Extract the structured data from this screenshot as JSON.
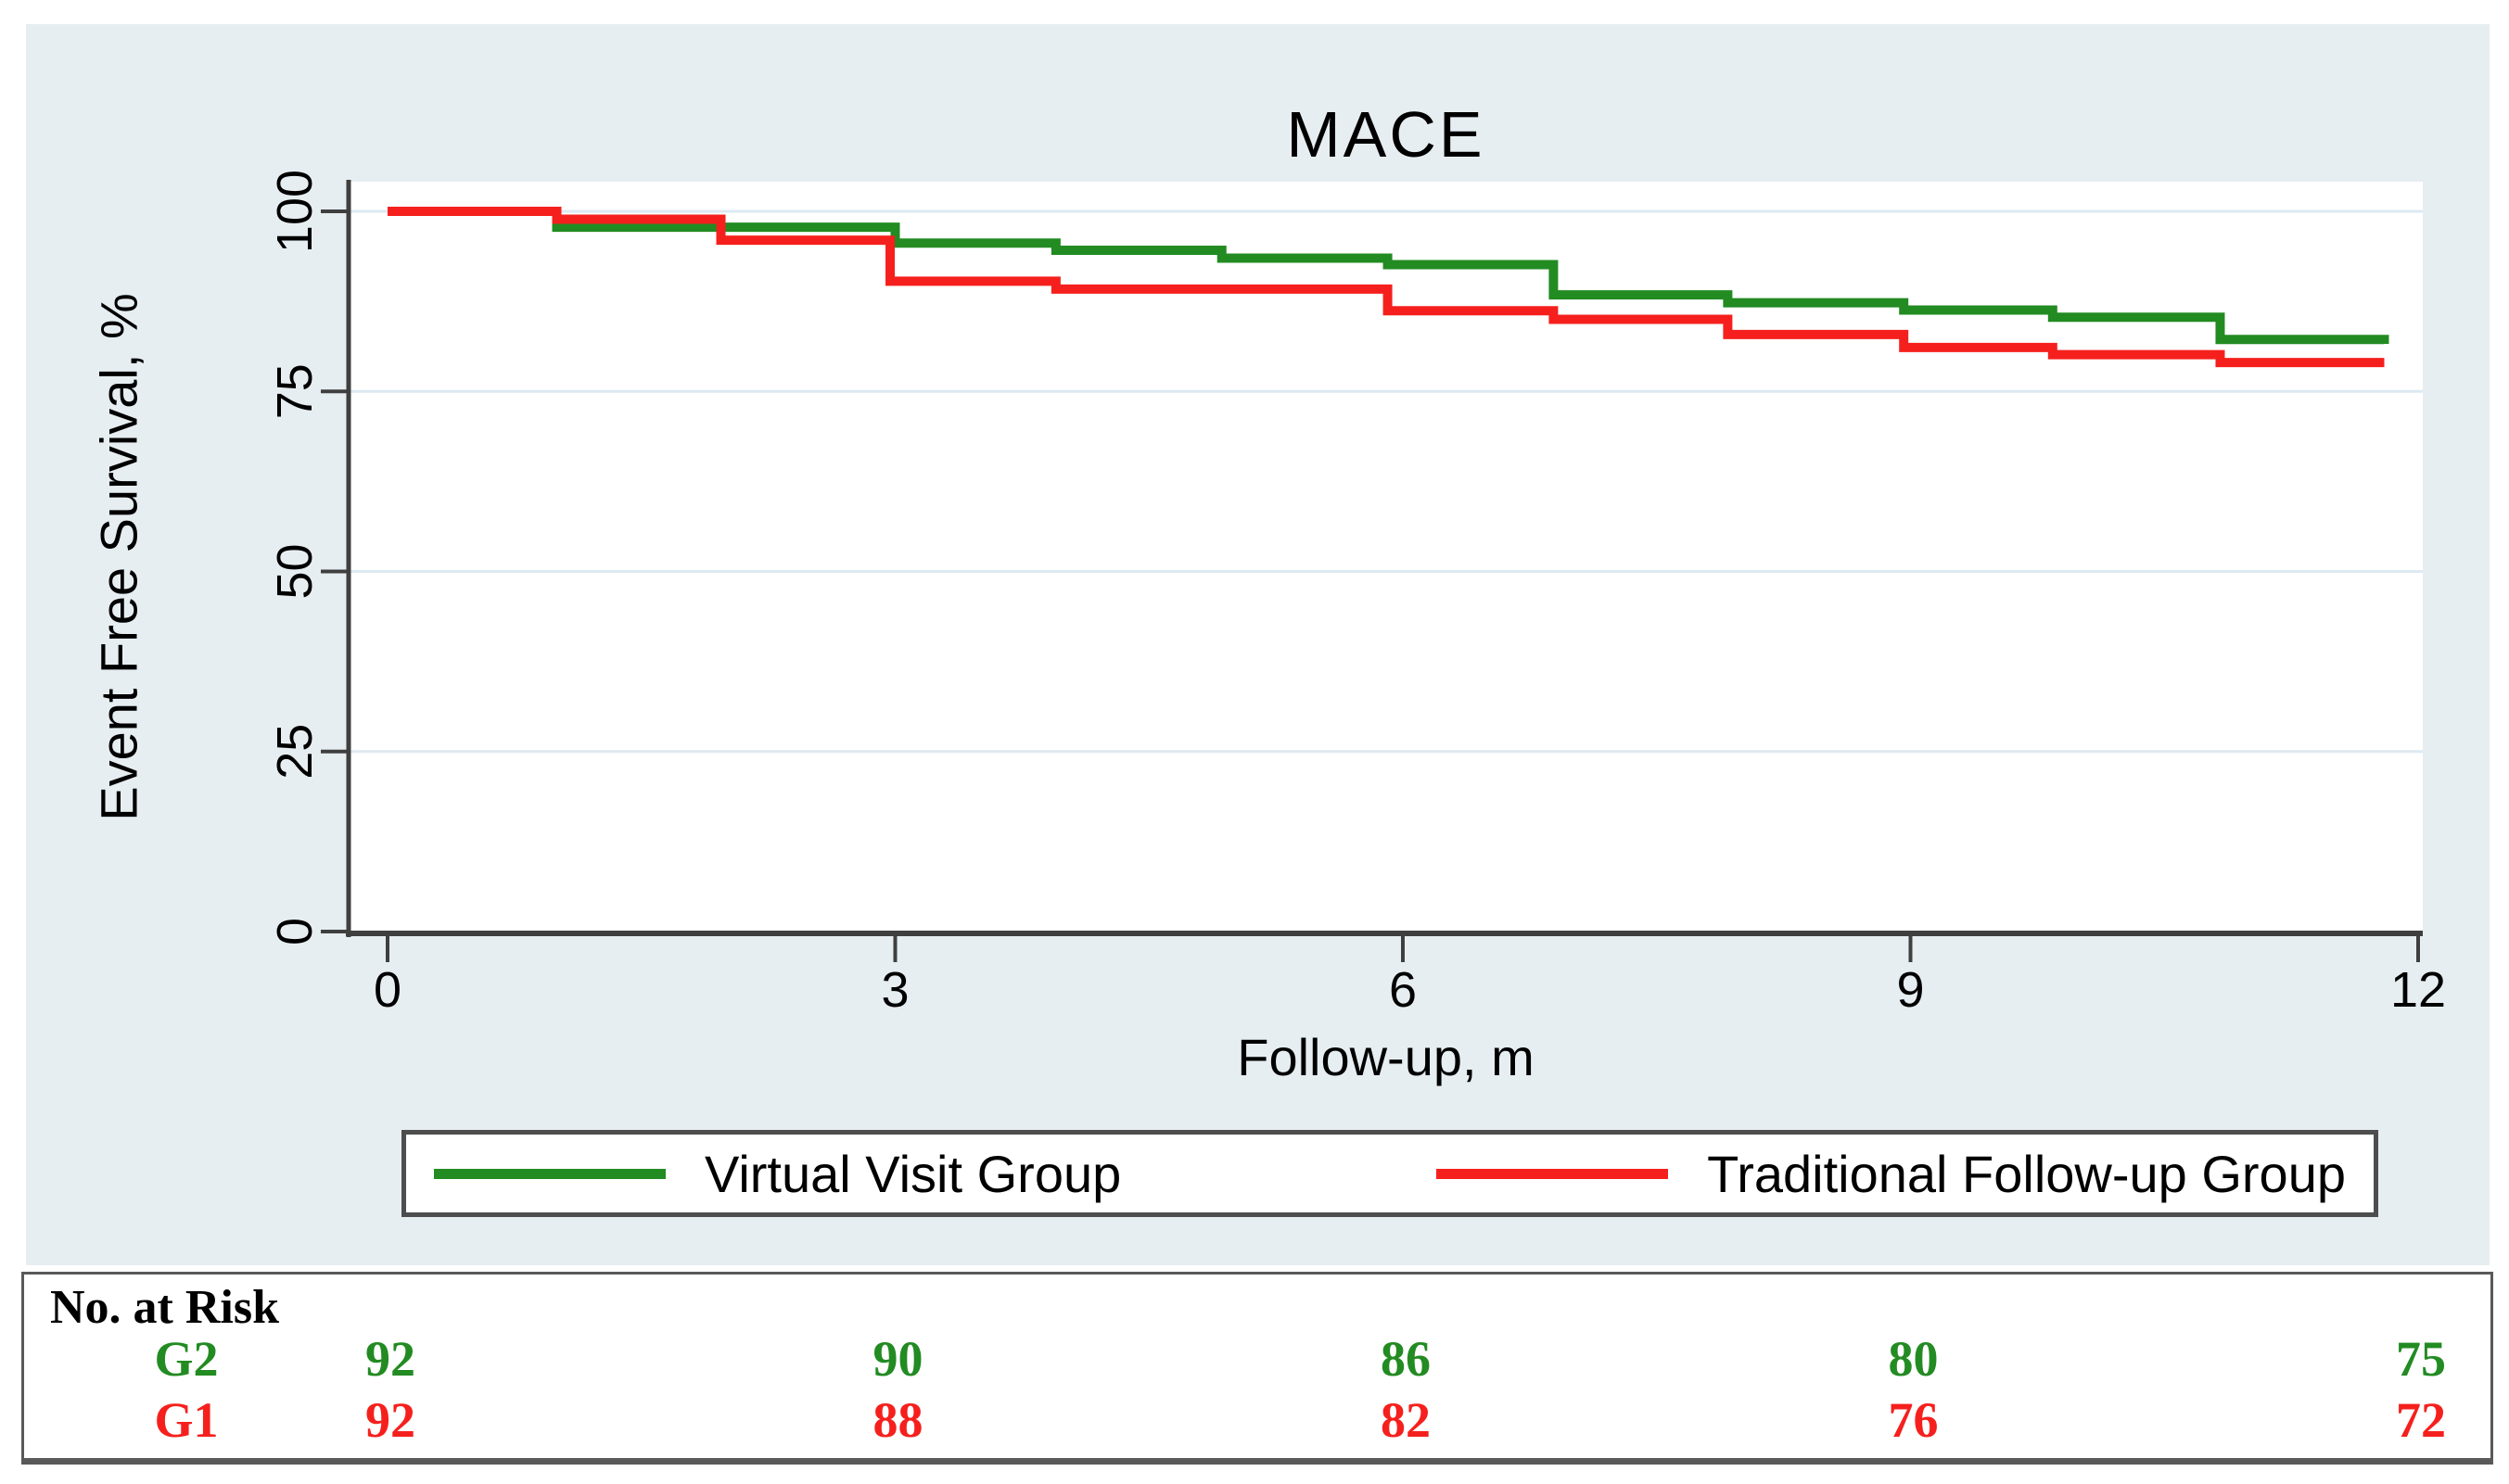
{
  "title": "MACE",
  "axes": {
    "x_label": "Follow-up, m",
    "y_label": "Event Free Survival, %",
    "x_ticks": [
      0,
      3,
      6,
      9,
      12
    ],
    "y_ticks": [
      0,
      25,
      50,
      75,
      100
    ]
  },
  "colors": {
    "green": "#228B22",
    "red": "#F5201D",
    "figure_bg": "#E7EEF2",
    "plot_bg": "#FFFFFF",
    "gridline": "#DCE9F3",
    "axis": "#3F3F3F"
  },
  "legend": {
    "items": [
      {
        "label": "Virtual Visit Group",
        "color": "#228B22"
      },
      {
        "label": "Traditional Follow-up Group",
        "color": "#F5201D"
      }
    ]
  },
  "risk_table": {
    "header": "No. at Risk",
    "time_points": [
      0,
      3,
      6,
      9,
      12
    ],
    "rows": [
      {
        "label": "G2",
        "color": "#228B22",
        "values": [
          92,
          90,
          86,
          80,
          75
        ]
      },
      {
        "label": "G1",
        "color": "#F5201D",
        "values": [
          92,
          88,
          82,
          76,
          72
        ]
      }
    ]
  },
  "chart_data": {
    "type": "line",
    "subtype": "kaplan-meier-step",
    "title": "MACE",
    "xlabel": "Follow-up, m",
    "ylabel": "Event Free Survival, %",
    "xlim": [
      0,
      12.2
    ],
    "ylim": [
      0,
      103
    ],
    "x_ticks": [
      0,
      3,
      6,
      9,
      12
    ],
    "y_ticks": [
      0,
      25,
      50,
      75,
      100
    ],
    "grid": "horizontal",
    "legend_position": "bottom",
    "series": [
      {
        "name": "Virtual Visit Group",
        "color": "#228B22",
        "steps": [
          [
            0,
            100
          ],
          [
            1,
            97.8
          ],
          [
            3,
            95.6
          ],
          [
            3.95,
            94.6
          ],
          [
            4.93,
            93.5
          ],
          [
            5.91,
            92.6
          ],
          [
            6.89,
            88.4
          ],
          [
            7.92,
            87.3
          ],
          [
            8.96,
            86.3
          ],
          [
            9.84,
            85.3
          ],
          [
            10.83,
            82.2
          ],
          [
            11.8,
            81.6
          ]
        ]
      },
      {
        "name": "Traditional Follow-up Group",
        "color": "#F5201D",
        "steps": [
          [
            0,
            100
          ],
          [
            1,
            98.9
          ],
          [
            1.97,
            96.0
          ],
          [
            2.97,
            90.3
          ],
          [
            3.95,
            89.2
          ],
          [
            5.91,
            86.2
          ],
          [
            6.89,
            85.0
          ],
          [
            7.92,
            82.9
          ],
          [
            8.96,
            81.1
          ],
          [
            9.84,
            80.1
          ],
          [
            10.83,
            79.0
          ],
          [
            11.8,
            79.0
          ]
        ]
      }
    ]
  }
}
